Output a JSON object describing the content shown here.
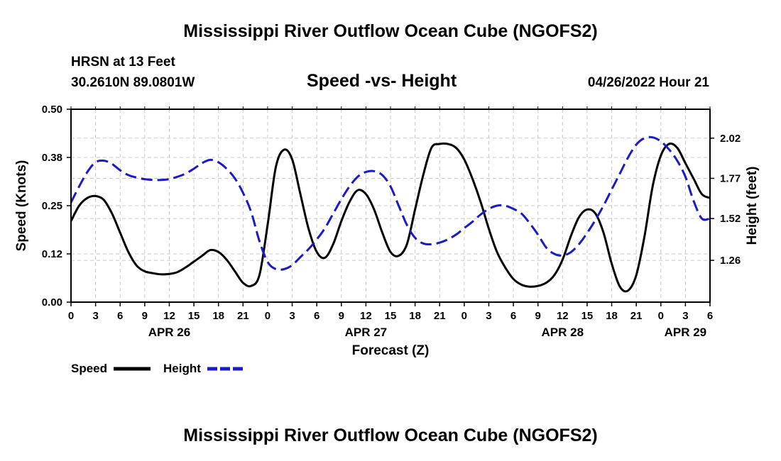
{
  "header": {
    "title": "Mississippi River Outflow Ocean Cube (NGOFS2)",
    "station": "HRSN at 13 Feet",
    "coords": "30.2610N  89.0801W",
    "subtitle": "Speed -vs- Height",
    "date": "04/26/2022 Hour 21"
  },
  "footer": {
    "title": "Mississippi River Outflow Ocean Cube (NGOFS2)"
  },
  "chart_data": {
    "type": "line",
    "title": "Speed -vs- Height",
    "xlabel": "Forecast (Z)",
    "ylabel": "Speed (Knots)",
    "y2label": "Height (feet)",
    "grid": true,
    "legend_position": "bottom-left",
    "xlim": [
      0,
      78
    ],
    "ylim": [
      0,
      0.5
    ],
    "y2lim": [
      1.0,
      2.2
    ],
    "x_tick_values": [
      0,
      3,
      6,
      9,
      12,
      15,
      18,
      21,
      24,
      27,
      30,
      33,
      36,
      39,
      42,
      45,
      48,
      51,
      54,
      57,
      60,
      63,
      66,
      69,
      72,
      75,
      78
    ],
    "x_tick_labels": [
      "0",
      "3",
      "6",
      "9",
      "12",
      "15",
      "18",
      "21",
      "0",
      "3",
      "6",
      "9",
      "12",
      "15",
      "18",
      "21",
      "0",
      "3",
      "6",
      "9",
      "12",
      "15",
      "18",
      "21",
      "0",
      "3",
      "6"
    ],
    "date_labels": [
      {
        "x": 12,
        "label": "APR 26"
      },
      {
        "x": 36,
        "label": "APR 27"
      },
      {
        "x": 60,
        "label": "APR 28"
      },
      {
        "x": 75,
        "label": "APR 29"
      }
    ],
    "y_tick_values": [
      0,
      0.125,
      0.25,
      0.375,
      0.5
    ],
    "y_tick_labels": [
      "0.00",
      "0.12",
      "0.25",
      "0.38",
      "0.50"
    ],
    "y2_tick_values": [
      1.26,
      1.52,
      1.77,
      2.02
    ],
    "y2_tick_labels": [
      "1.26",
      "1.52",
      "1.77",
      "2.02"
    ],
    "series": [
      {
        "name": "Speed",
        "axis": "left",
        "color": "#000000",
        "dash": "solid",
        "x": [
          0,
          1,
          2,
          3,
          4,
          5,
          6,
          7,
          8,
          9,
          10,
          11,
          12,
          13,
          14,
          15,
          16,
          17,
          18,
          19,
          20,
          21,
          22,
          23,
          24,
          25,
          26,
          27,
          28,
          29,
          30,
          31,
          32,
          33,
          34,
          35,
          36,
          37,
          38,
          39,
          40,
          41,
          42,
          43,
          44,
          45,
          46,
          47,
          48,
          49,
          50,
          51,
          52,
          53,
          54,
          55,
          56,
          57,
          58,
          59,
          60,
          61,
          62,
          63,
          64,
          65,
          66,
          67,
          68,
          69,
          70,
          71,
          72,
          73,
          74,
          75,
          76,
          77,
          78
        ],
        "values": [
          0.21,
          0.25,
          0.27,
          0.275,
          0.265,
          0.23,
          0.18,
          0.13,
          0.095,
          0.08,
          0.075,
          0.072,
          0.073,
          0.078,
          0.09,
          0.105,
          0.12,
          0.135,
          0.13,
          0.11,
          0.08,
          0.05,
          0.042,
          0.07,
          0.2,
          0.35,
          0.395,
          0.37,
          0.28,
          0.19,
          0.13,
          0.115,
          0.15,
          0.21,
          0.26,
          0.29,
          0.28,
          0.24,
          0.18,
          0.13,
          0.12,
          0.15,
          0.24,
          0.33,
          0.4,
          0.41,
          0.41,
          0.4,
          0.37,
          0.32,
          0.26,
          0.19,
          0.13,
          0.09,
          0.06,
          0.045,
          0.04,
          0.042,
          0.05,
          0.07,
          0.11,
          0.17,
          0.22,
          0.24,
          0.23,
          0.18,
          0.1,
          0.04,
          0.03,
          0.07,
          0.17,
          0.3,
          0.38,
          0.41,
          0.4,
          0.36,
          0.32,
          0.28,
          0.27
        ]
      },
      {
        "name": "Height",
        "axis": "right",
        "color": "#1a1ac8",
        "dash": "dashed",
        "x": [
          0,
          1,
          2,
          3,
          4,
          5,
          6,
          7,
          8,
          9,
          10,
          11,
          12,
          13,
          14,
          15,
          16,
          17,
          18,
          19,
          20,
          21,
          22,
          23,
          24,
          25,
          26,
          27,
          28,
          29,
          30,
          31,
          32,
          33,
          34,
          35,
          36,
          37,
          38,
          39,
          40,
          41,
          42,
          43,
          44,
          45,
          46,
          47,
          48,
          49,
          50,
          51,
          52,
          53,
          54,
          55,
          56,
          57,
          58,
          59,
          60,
          61,
          62,
          63,
          64,
          65,
          66,
          67,
          68,
          69,
          70,
          71,
          72,
          73,
          74,
          75,
          76,
          77,
          78
        ],
        "values": [
          1.62,
          1.72,
          1.81,
          1.87,
          1.88,
          1.86,
          1.82,
          1.79,
          1.775,
          1.765,
          1.76,
          1.76,
          1.765,
          1.78,
          1.8,
          1.83,
          1.865,
          1.885,
          1.87,
          1.83,
          1.77,
          1.68,
          1.56,
          1.38,
          1.25,
          1.205,
          1.205,
          1.23,
          1.28,
          1.33,
          1.39,
          1.46,
          1.55,
          1.64,
          1.72,
          1.78,
          1.81,
          1.815,
          1.79,
          1.72,
          1.6,
          1.48,
          1.4,
          1.365,
          1.36,
          1.37,
          1.39,
          1.42,
          1.46,
          1.5,
          1.545,
          1.58,
          1.6,
          1.6,
          1.58,
          1.55,
          1.49,
          1.42,
          1.34,
          1.3,
          1.29,
          1.31,
          1.36,
          1.43,
          1.51,
          1.6,
          1.7,
          1.8,
          1.9,
          1.98,
          2.02,
          2.025,
          2.0,
          1.95,
          1.88,
          1.78,
          1.63,
          1.52,
          1.52
        ]
      }
    ]
  }
}
